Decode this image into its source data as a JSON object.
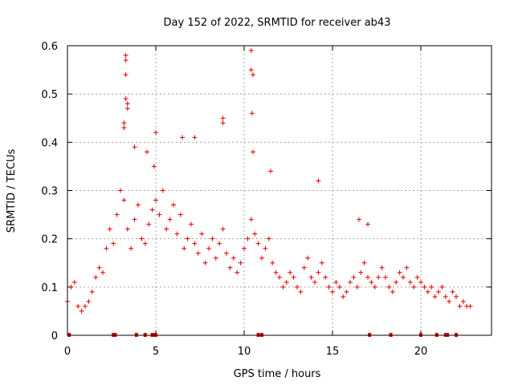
{
  "chart_data": {
    "type": "scatter",
    "title": "Day 152 of 2022, SRMTID for receiver ab43",
    "xlabel": "GPS time / hours",
    "ylabel": "SRMTID / TECUs",
    "xlim": [
      0,
      24
    ],
    "ylim": [
      0,
      0.6
    ],
    "x_ticks": [
      0,
      5,
      10,
      15,
      20
    ],
    "x_tick_labels": [
      "0",
      "5",
      "10",
      "15",
      "20"
    ],
    "y_ticks": [
      0,
      0.1,
      0.2,
      0.3,
      0.4,
      0.5,
      0.6
    ],
    "y_tick_labels": [
      "0",
      "0.1",
      "0.2",
      "0.3",
      "0.4",
      "0.5",
      "0.6"
    ],
    "grid": true,
    "marker": "+",
    "colors": {
      "points": "#e00000",
      "frame": "#000000",
      "grid": "#a0a0a0"
    },
    "series": [
      {
        "name": "SRMTID",
        "x": [
          0.0,
          0.2,
          0.4,
          0.6,
          0.8,
          1.0,
          1.2,
          1.4,
          1.6,
          1.8,
          2.0,
          2.2,
          2.4,
          2.6,
          2.8,
          3.0,
          3.2,
          3.4,
          3.6,
          3.8,
          4.0,
          4.2,
          4.4,
          4.6,
          4.8,
          5.0,
          5.2,
          5.4,
          5.6,
          5.8,
          6.0,
          6.2,
          6.4,
          6.6,
          6.8,
          7.0,
          7.2,
          7.4,
          7.6,
          7.8,
          8.0,
          8.2,
          8.4,
          8.6,
          8.8,
          9.0,
          9.2,
          9.4,
          9.6,
          9.8,
          10.0,
          10.2,
          10.4,
          10.6,
          10.8,
          11.0,
          11.2,
          11.4,
          11.6,
          11.8,
          12.0,
          12.2,
          12.4,
          12.6,
          12.8,
          13.0,
          13.2,
          13.4,
          13.6,
          13.8,
          14.0,
          14.2,
          14.4,
          14.6,
          14.8,
          15.0,
          15.2,
          15.4,
          15.6,
          15.8,
          16.0,
          16.2,
          16.4,
          16.6,
          16.8,
          17.0,
          17.2,
          17.4,
          17.6,
          17.8,
          18.0,
          18.2,
          18.4,
          18.6,
          18.8,
          19.0,
          19.2,
          19.4,
          19.6,
          19.8,
          20.0,
          20.2,
          20.4,
          20.6,
          20.8,
          21.0,
          21.2,
          21.4,
          21.6,
          21.8,
          22.0,
          22.2,
          22.4,
          22.6,
          22.8,
          3.3,
          3.3,
          3.3,
          3.3,
          3.4,
          3.4,
          3.2,
          3.2,
          10.4,
          10.4,
          10.45,
          10.5,
          10.5,
          8.8,
          8.8,
          5.0,
          4.9,
          6.5,
          7.2,
          4.5,
          3.8,
          11.5,
          14.2,
          16.5,
          17.0
        ],
        "y": [
          0.07,
          0.1,
          0.11,
          0.06,
          0.05,
          0.06,
          0.07,
          0.09,
          0.12,
          0.14,
          0.13,
          0.18,
          0.22,
          0.19,
          0.25,
          0.3,
          0.28,
          0.22,
          0.18,
          0.24,
          0.27,
          0.2,
          0.19,
          0.23,
          0.26,
          0.28,
          0.25,
          0.3,
          0.22,
          0.24,
          0.27,
          0.21,
          0.25,
          0.18,
          0.2,
          0.23,
          0.19,
          0.17,
          0.21,
          0.15,
          0.18,
          0.2,
          0.16,
          0.19,
          0.22,
          0.17,
          0.14,
          0.16,
          0.13,
          0.15,
          0.18,
          0.2,
          0.24,
          0.21,
          0.19,
          0.16,
          0.18,
          0.2,
          0.15,
          0.13,
          0.12,
          0.1,
          0.11,
          0.13,
          0.12,
          0.1,
          0.09,
          0.14,
          0.16,
          0.12,
          0.11,
          0.13,
          0.15,
          0.12,
          0.1,
          0.09,
          0.11,
          0.1,
          0.08,
          0.09,
          0.11,
          0.12,
          0.1,
          0.13,
          0.15,
          0.12,
          0.11,
          0.1,
          0.12,
          0.14,
          0.12,
          0.1,
          0.09,
          0.11,
          0.13,
          0.12,
          0.14,
          0.11,
          0.1,
          0.12,
          0.11,
          0.1,
          0.09,
          0.1,
          0.08,
          0.09,
          0.1,
          0.08,
          0.07,
          0.09,
          0.08,
          0.06,
          0.07,
          0.06,
          0.06,
          0.57,
          0.58,
          0.54,
          0.49,
          0.47,
          0.48,
          0.44,
          0.43,
          0.59,
          0.55,
          0.46,
          0.54,
          0.38,
          0.45,
          0.44,
          0.42,
          0.35,
          0.41,
          0.41,
          0.38,
          0.39,
          0.34,
          0.32,
          0.24,
          0.23
        ]
      }
    ],
    "data_gap_hours": [
      0.1,
      2.6,
      2.7,
      3.9,
      4.4,
      4.8,
      4.9,
      5.0,
      10.8,
      11.0,
      17.1,
      18.3,
      20.0,
      20.9,
      21.4,
      21.5,
      22.0
    ]
  }
}
